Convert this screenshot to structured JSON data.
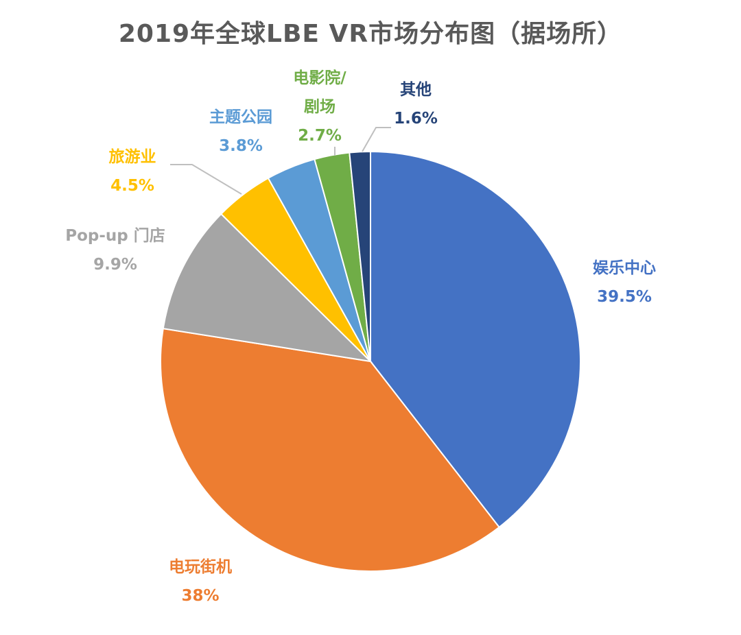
{
  "chart_data": {
    "type": "pie",
    "title": "2019年全球LBE VR市场分布图（据场所）",
    "categories": [
      "娱乐中心",
      "电玩街机",
      "Pop-up 门店",
      "旅游业",
      "主题公园",
      "电影院/剧场",
      "其他"
    ],
    "values": [
      39.5,
      38,
      9.9,
      4.5,
      3.8,
      2.7,
      1.6
    ],
    "value_labels": [
      "39.5%",
      "38%",
      "9.9%",
      "4.5%",
      "3.8%",
      "2.7%",
      "1.6%"
    ],
    "colors": [
      "#4472C4",
      "#ED7D31",
      "#A5A5A5",
      "#FFC000",
      "#5B9BD5",
      "#70AD47",
      "#264478"
    ],
    "start_angle": "12 o'clock",
    "direction": "clockwise",
    "legend": "none",
    "data_labels": "outside with leader lines"
  }
}
